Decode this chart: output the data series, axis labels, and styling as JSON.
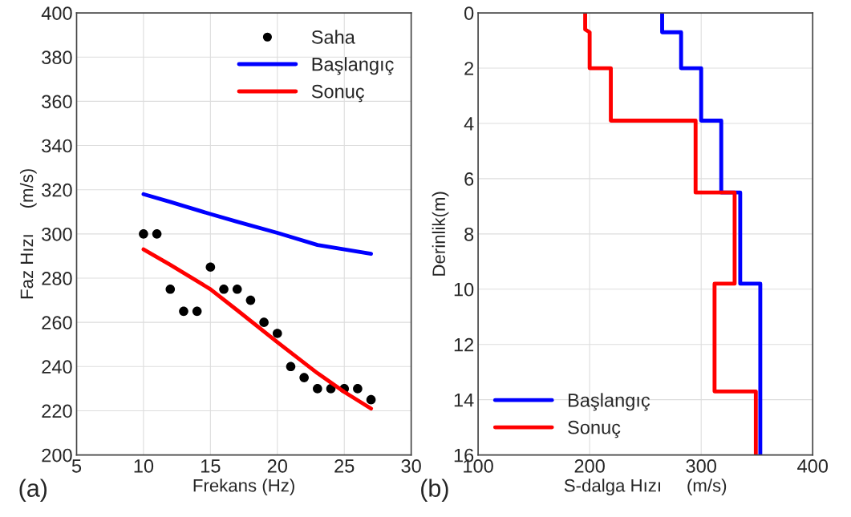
{
  "chart_data": [
    {
      "type": "line",
      "xlabel": "Frekans (Hz)",
      "ylabel": "Faz Hızı     (m/s)",
      "annotations": [
        "(a)"
      ],
      "xlim": [
        5,
        30
      ],
      "xticks": [
        5,
        10,
        15,
        20,
        25,
        30
      ],
      "ylim": [
        200,
        400
      ],
      "yticks": [
        200,
        220,
        240,
        260,
        280,
        300,
        320,
        340,
        360,
        380,
        400
      ],
      "grid": true,
      "legend": "top right",
      "series": [
        {
          "name": "Saha",
          "type": "scatter",
          "marker": "circle",
          "color": "#000000",
          "x": [
            10,
            11,
            12,
            13,
            14,
            15,
            16,
            17,
            18,
            19,
            20,
            21,
            22,
            23,
            24,
            25,
            26,
            27
          ],
          "values": [
            300,
            300,
            275,
            265,
            265,
            285,
            275,
            275,
            270,
            260,
            255,
            240,
            235,
            230,
            230,
            230,
            230,
            225
          ]
        },
        {
          "name": "Başlangıç",
          "color": "#0000ff",
          "x": [
            10,
            12,
            15,
            17,
            20,
            23,
            27
          ],
          "values": [
            318,
            314.5,
            309,
            305.5,
            300.5,
            295,
            291
          ]
        },
        {
          "name": "Sonuç",
          "color": "#ff0000",
          "x": [
            10,
            12,
            15,
            17,
            20,
            23,
            25,
            27
          ],
          "values": [
            293,
            286,
            275,
            265.5,
            251,
            237,
            228.5,
            221
          ]
        }
      ]
    },
    {
      "type": "line",
      "xlabel": "S-dalga Hızı     (m/s)",
      "ylabel": "Derinlik(m)",
      "annotations": [
        "(b)"
      ],
      "xlim": [
        100,
        400
      ],
      "xticks": [
        100,
        200,
        300,
        400
      ],
      "ylim": [
        16,
        0
      ],
      "yticks": [
        0,
        2,
        4,
        6,
        8,
        10,
        12,
        14,
        16
      ],
      "grid": true,
      "legend": "bottom left",
      "series": [
        {
          "name": "Başlangıç",
          "color": "#0000ff",
          "x": [
            265,
            265,
            282,
            282,
            300,
            300,
            318,
            318,
            335,
            335,
            353,
            353
          ],
          "values": [
            0,
            0.7,
            0.7,
            2,
            2,
            3.9,
            3.9,
            6.5,
            6.5,
            9.8,
            9.8,
            16
          ]
        },
        {
          "name": "Sonuç",
          "color": "#ff0000",
          "x": [
            196,
            196,
            200,
            200,
            219,
            219,
            295,
            295,
            330,
            330,
            312,
            312,
            349,
            349
          ],
          "values": [
            0,
            0.6,
            0.7,
            2,
            2,
            3.9,
            3.9,
            6.5,
            6.5,
            9.8,
            9.8,
            13.7,
            13.7,
            16
          ]
        }
      ]
    }
  ]
}
